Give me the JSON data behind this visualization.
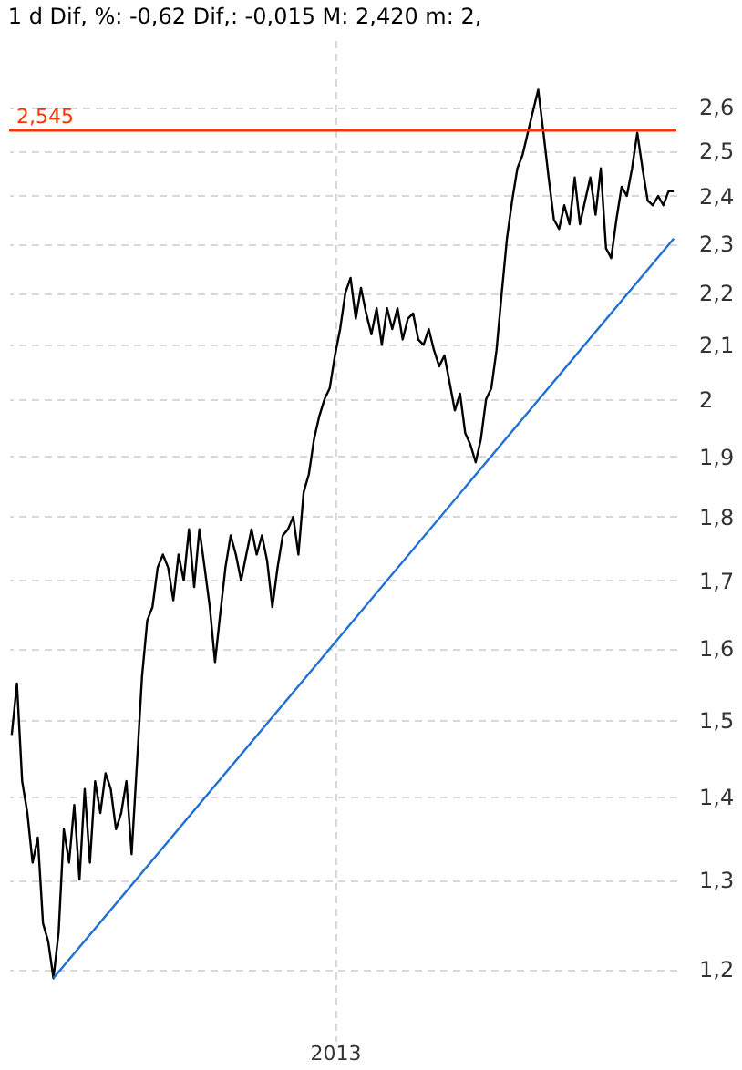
{
  "chart_data": {
    "type": "line",
    "title": "1 d Dif, %: -0,62 Dif,: -0,015 M: 2,420 m: 2,",
    "log": "y",
    "grid": true,
    "marker": "none",
    "line_style": "solid",
    "categories": [
      null,
      null,
      null,
      null,
      null,
      null,
      null,
      null,
      null,
      null,
      null,
      null,
      null,
      null,
      null,
      null,
      null,
      null,
      null,
      null,
      null,
      null,
      null,
      null,
      null,
      null,
      null,
      null,
      null,
      null,
      null,
      null,
      null,
      null,
      null,
      null,
      null,
      null,
      null,
      null,
      null,
      null,
      null,
      null,
      null,
      null,
      null,
      null,
      null,
      null,
      null,
      null,
      null,
      null,
      null,
      null,
      null,
      null,
      null,
      null,
      null,
      null,
      "2013",
      null,
      null,
      null,
      null,
      null,
      null,
      null,
      null,
      null,
      null,
      null,
      null,
      null,
      null,
      null,
      null,
      null,
      null,
      null,
      null,
      null,
      null,
      null,
      null,
      null,
      null,
      null,
      null,
      null,
      null,
      null,
      null,
      null,
      null,
      null,
      null,
      null,
      null,
      null,
      null,
      null,
      null,
      null,
      null,
      null,
      null,
      null,
      null,
      null,
      null,
      null,
      null,
      null,
      null,
      null,
      null,
      null,
      null,
      null,
      null,
      null,
      null,
      null,
      null,
      null
    ],
    "ylim": [
      1.125,
      2.76
    ],
    "yticks": [
      {
        "value": 1.2,
        "label": "1,2"
      },
      {
        "value": 1.3,
        "label": "1,3"
      },
      {
        "value": 1.4,
        "label": "1,4"
      },
      {
        "value": 1.5,
        "label": "1,5"
      },
      {
        "value": 1.6,
        "label": "1,6"
      },
      {
        "value": 1.7,
        "label": "1,7"
      },
      {
        "value": 1.8,
        "label": "1,8"
      },
      {
        "value": 1.9,
        "label": "1,9"
      },
      {
        "value": 2,
        "label": "2"
      },
      {
        "value": 2.1,
        "label": "2,1"
      },
      {
        "value": 2.2,
        "label": "2,2"
      },
      {
        "value": 2.3,
        "label": "2,3"
      },
      {
        "value": 2.4,
        "label": "2,4"
      },
      {
        "value": 2.5,
        "label": "2,5"
      },
      {
        "value": 2.6,
        "label": "2,6"
      }
    ],
    "ref_lines": [
      {
        "axis": "y",
        "value": 2.545,
        "label": "2,545",
        "color": "#ff3300"
      }
    ],
    "series": [
      {
        "color": "#000000",
        "values": [
          1.48,
          1.55,
          1.42,
          1.38,
          1.32,
          1.35,
          1.25,
          1.23,
          1.19,
          1.24,
          1.36,
          1.32,
          1.39,
          1.3,
          1.41,
          1.32,
          1.42,
          1.38,
          1.43,
          1.41,
          1.36,
          1.38,
          1.42,
          1.33,
          1.44,
          1.56,
          1.64,
          1.66,
          1.72,
          1.74,
          1.72,
          1.67,
          1.74,
          1.7,
          1.78,
          1.69,
          1.78,
          1.72,
          1.66,
          1.58,
          1.65,
          1.72,
          1.77,
          1.74,
          1.7,
          1.74,
          1.78,
          1.74,
          1.77,
          1.73,
          1.66,
          1.72,
          1.77,
          1.78,
          1.8,
          1.74,
          1.84,
          1.87,
          1.93,
          1.97,
          2.0,
          2.02,
          2.08,
          2.13,
          2.2,
          2.23,
          2.15,
          2.21,
          2.16,
          2.12,
          2.17,
          2.1,
          2.17,
          2.13,
          2.17,
          2.11,
          2.15,
          2.16,
          2.11,
          2.1,
          2.13,
          2.09,
          2.06,
          2.08,
          2.03,
          1.98,
          2.01,
          1.94,
          1.92,
          1.89,
          1.93,
          2.0,
          2.02,
          2.09,
          2.2,
          2.31,
          2.39,
          2.46,
          2.49,
          2.54,
          2.59,
          2.64,
          2.54,
          2.44,
          2.35,
          2.33,
          2.38,
          2.34,
          2.44,
          2.34,
          2.39,
          2.44,
          2.36,
          2.46,
          2.29,
          2.27,
          2.35,
          2.42,
          2.4,
          2.46,
          2.54,
          2.46,
          2.39,
          2.38,
          2.4,
          2.38,
          2.41,
          2.41
        ]
      },
      {
        "type": "line",
        "color": "#1f6fd6",
        "values": [
          null,
          null,
          null,
          null,
          null,
          null,
          null,
          null,
          1.19,
          null,
          null,
          null,
          null,
          null,
          null,
          null,
          null,
          null,
          null,
          null,
          null,
          null,
          null,
          null,
          null,
          null,
          null,
          null,
          null,
          null,
          null,
          null,
          null,
          null,
          null,
          null,
          null,
          null,
          null,
          null,
          null,
          null,
          null,
          null,
          null,
          null,
          null,
          null,
          null,
          null,
          null,
          null,
          null,
          null,
          null,
          null,
          null,
          null,
          null,
          null,
          null,
          null,
          null,
          null,
          null,
          null,
          null,
          null,
          null,
          null,
          null,
          null,
          null,
          null,
          null,
          null,
          null,
          null,
          null,
          null,
          null,
          null,
          null,
          null,
          null,
          null,
          null,
          null,
          null,
          null,
          null,
          null,
          null,
          null,
          null,
          null,
          null,
          null,
          null,
          null,
          null,
          null,
          null,
          null,
          null,
          null,
          null,
          null,
          null,
          null,
          null,
          null,
          null,
          null,
          null,
          null,
          null,
          null,
          null,
          null,
          null,
          null,
          null,
          null,
          null,
          null,
          null,
          2.31
        ]
      }
    ]
  }
}
